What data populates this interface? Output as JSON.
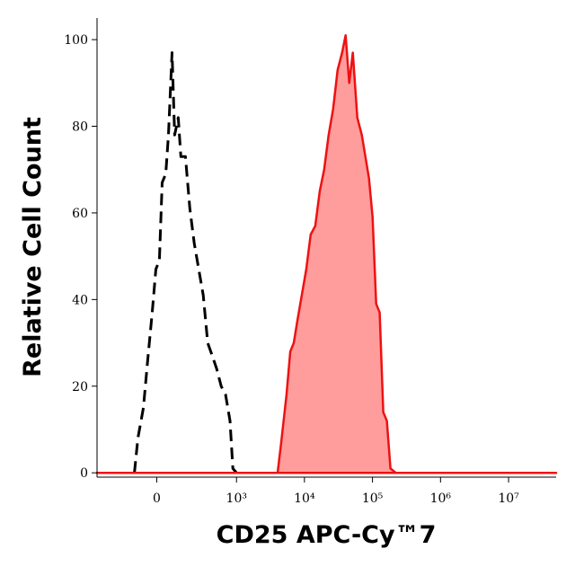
{
  "chart_data": {
    "type": "histogram-overlay",
    "xlabel": "CD25 APC-Cy™7",
    "ylabel": "Relative Cell Count",
    "xscale": "biexponential",
    "xlim": [
      -500,
      50000000
    ],
    "xticks": [
      0,
      {
        "value": 1000,
        "label": "10³"
      },
      {
        "value": 10000,
        "label": "10⁴"
      },
      {
        "value": 100000,
        "label": "10⁵"
      },
      {
        "value": 1000000,
        "label": "10⁶"
      },
      {
        "value": 10000000,
        "label": "10⁷"
      }
    ],
    "ylim": [
      -1,
      105
    ],
    "yticks": [
      0,
      20,
      40,
      60,
      80,
      100
    ],
    "series": [
      {
        "color": "#000000",
        "style": "dashed",
        "filled": false,
        "x": [
          -112,
          -92,
          -63,
          -42,
          -21,
          -4,
          12,
          25,
          42,
          55,
          73,
          87,
          107,
          123,
          153,
          185,
          221,
          263,
          312,
          367,
          432,
          505,
          590,
          687,
          801,
          884,
          1000
        ],
        "values": [
          0,
          8,
          15,
          26,
          37,
          47,
          49,
          67,
          69,
          78,
          97,
          78,
          82,
          73,
          73,
          61,
          53,
          47,
          41,
          30,
          27,
          24,
          20,
          18,
          12,
          1,
          0
        ]
      },
      {
        "color": "#ee1111",
        "fill": "#ff9c9c",
        "style": "solid",
        "filled": true,
        "x": [
          -500,
          4040,
          4560,
          5450,
          6190,
          6970,
          7860,
          9130,
          10650,
          12370,
          14440,
          16790,
          19490,
          22680,
          26420,
          30740,
          35750,
          40360,
          45560,
          51460,
          59900,
          69670,
          78660,
          88870,
          100260,
          113180,
          127660,
          144200,
          162700,
          183600,
          220500,
          50000000
        ],
        "values": [
          0,
          0,
          7,
          18,
          28,
          30,
          35,
          41,
          47,
          55,
          57,
          65,
          70,
          78,
          84,
          93,
          97,
          101,
          90,
          97,
          82,
          78,
          73,
          68,
          59,
          39,
          37,
          14,
          12,
          1,
          0,
          0
        ]
      }
    ]
  }
}
